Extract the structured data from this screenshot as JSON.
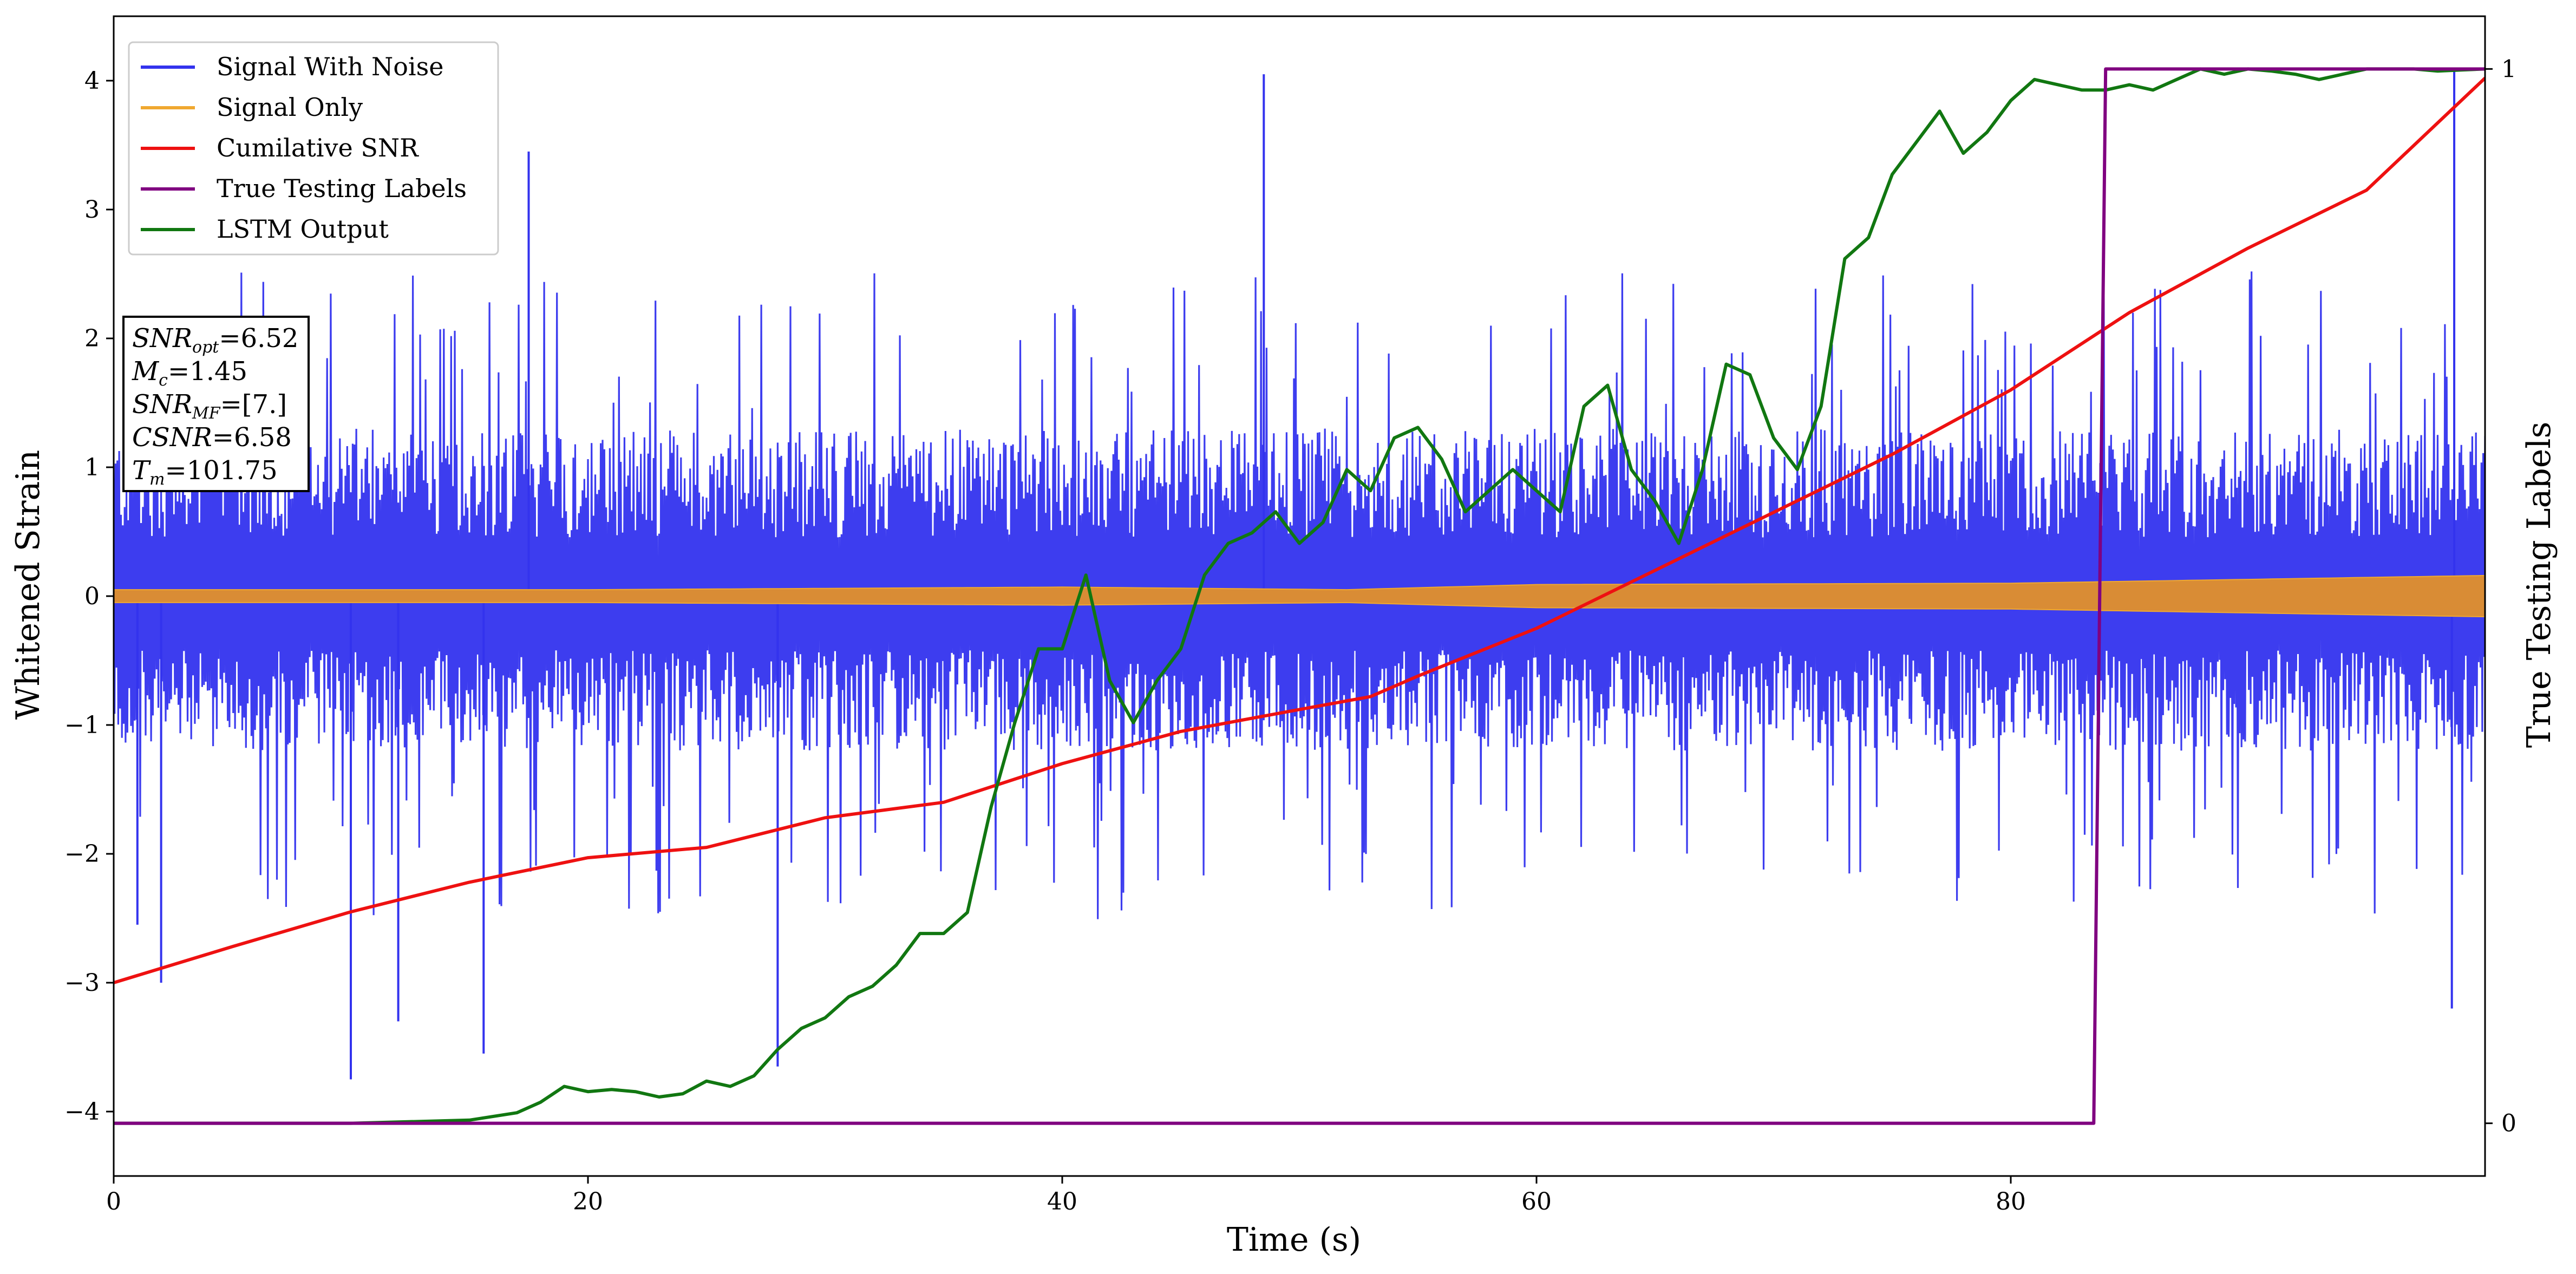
{
  "chart_data": {
    "type": "line",
    "title": "",
    "xlabel": "Time (s)",
    "ylabel": "Whitened Strain",
    "y2label": "True Testing Labels",
    "xlim": [
      0,
      100
    ],
    "ylim": [
      -4.5,
      4.5
    ],
    "y2lim": [
      -0.05,
      1.05
    ],
    "x_ticks": [
      0,
      20,
      40,
      60,
      80
    ],
    "y_ticks": [
      -4,
      -3,
      -2,
      -1,
      0,
      1,
      2,
      3,
      4
    ],
    "y2_ticks": [
      0,
      1
    ],
    "grid": false,
    "legend_position": "top-left",
    "annotation": [
      {
        "name": "SNR",
        "sub": "opt",
        "value": "=6.52"
      },
      {
        "name": "M",
        "sub": "c",
        "value": "=1.45"
      },
      {
        "name": "SNR",
        "sub": "MF",
        "value": "=[7.]"
      },
      {
        "name": "CSNR",
        "sub": "",
        "value": "=6.58"
      },
      {
        "name": "T",
        "sub": "m",
        "value": "=101.75"
      }
    ],
    "series": [
      {
        "name": "Signal With Noise",
        "color": "#3333ee",
        "axis": "left",
        "style": "noise",
        "envelope_upper": 2.4,
        "envelope_lower": -2.4,
        "core_band": [
          -1.2,
          1.3
        ],
        "spikes": [
          [
            10,
            -3.75
          ],
          [
            48.5,
            4.05
          ],
          [
            98.7,
            4.1
          ],
          [
            98.6,
            -3.2
          ],
          [
            2,
            -3.0
          ],
          [
            1,
            -2.55
          ],
          [
            17.5,
            3.45
          ],
          [
            12,
            -3.3
          ],
          [
            15.6,
            -3.55
          ],
          [
            28,
            -3.65
          ]
        ]
      },
      {
        "name": "Signal Only",
        "color": "#f0a830",
        "axis": "left",
        "style": "band",
        "x": [
          0,
          20,
          40,
          52,
          60,
          80,
          90,
          100
        ],
        "amp": [
          0.05,
          0.05,
          0.07,
          0.05,
          0.09,
          0.1,
          0.13,
          0.16
        ]
      },
      {
        "name": "Cumilative SNR",
        "color": "#ee1111",
        "axis": "left",
        "x": [
          0,
          5,
          10,
          15,
          20,
          25,
          30,
          35,
          38,
          40,
          45,
          50,
          53,
          55,
          60,
          65,
          70,
          75,
          80,
          85,
          90,
          95,
          100
        ],
        "y": [
          -3.0,
          -2.72,
          -2.45,
          -2.22,
          -2.03,
          -1.95,
          -1.72,
          -1.6,
          -1.42,
          -1.3,
          -1.05,
          -0.88,
          -0.78,
          -0.62,
          -0.25,
          0.2,
          0.65,
          1.1,
          1.6,
          2.2,
          2.7,
          3.15,
          4.02
        ]
      },
      {
        "name": "True Testing Labels",
        "color": "#800080",
        "axis": "right",
        "x": [
          0,
          83.5,
          84,
          100
        ],
        "y": [
          0,
          0,
          1,
          1
        ]
      },
      {
        "name": "LSTM Output",
        "color": "#117711",
        "axis": "right",
        "x": [
          0,
          10,
          15,
          17,
          18,
          19,
          20,
          21,
          22,
          23,
          24,
          25,
          26,
          27,
          28,
          29,
          30,
          31,
          32,
          33,
          34,
          35,
          36,
          37,
          38,
          39,
          40,
          41,
          42,
          43,
          44,
          45,
          46,
          47,
          48,
          49,
          50,
          51,
          52,
          53,
          54,
          55,
          56,
          57,
          58,
          59,
          60,
          61,
          62,
          63,
          64,
          65,
          66,
          67,
          68,
          69,
          70,
          71,
          72,
          73,
          74,
          75,
          76,
          77,
          78,
          79,
          80,
          81,
          82,
          83,
          84,
          85,
          86,
          87,
          88,
          89,
          90,
          91,
          92,
          93,
          94,
          95,
          96,
          97,
          98,
          99,
          100
        ],
        "y": [
          0,
          0,
          0.003,
          0.01,
          0.02,
          0.035,
          0.03,
          0.032,
          0.03,
          0.025,
          0.028,
          0.04,
          0.035,
          0.045,
          0.07,
          0.09,
          0.1,
          0.12,
          0.13,
          0.15,
          0.18,
          0.18,
          0.2,
          0.3,
          0.38,
          0.45,
          0.45,
          0.52,
          0.42,
          0.38,
          0.42,
          0.45,
          0.52,
          0.55,
          0.56,
          0.58,
          0.55,
          0.57,
          0.62,
          0.6,
          0.65,
          0.66,
          0.63,
          0.58,
          0.6,
          0.62,
          0.6,
          0.58,
          0.68,
          0.7,
          0.62,
          0.59,
          0.55,
          0.62,
          0.72,
          0.71,
          0.65,
          0.62,
          0.68,
          0.82,
          0.84,
          0.9,
          0.93,
          0.96,
          0.92,
          0.94,
          0.97,
          0.99,
          0.985,
          0.98,
          0.98,
          0.985,
          0.98,
          0.99,
          1.0,
          0.995,
          1.0,
          0.998,
          0.995,
          0.99,
          0.995,
          1.0,
          1.0,
          1.0,
          0.998,
          0.999,
          1.0
        ]
      }
    ]
  }
}
